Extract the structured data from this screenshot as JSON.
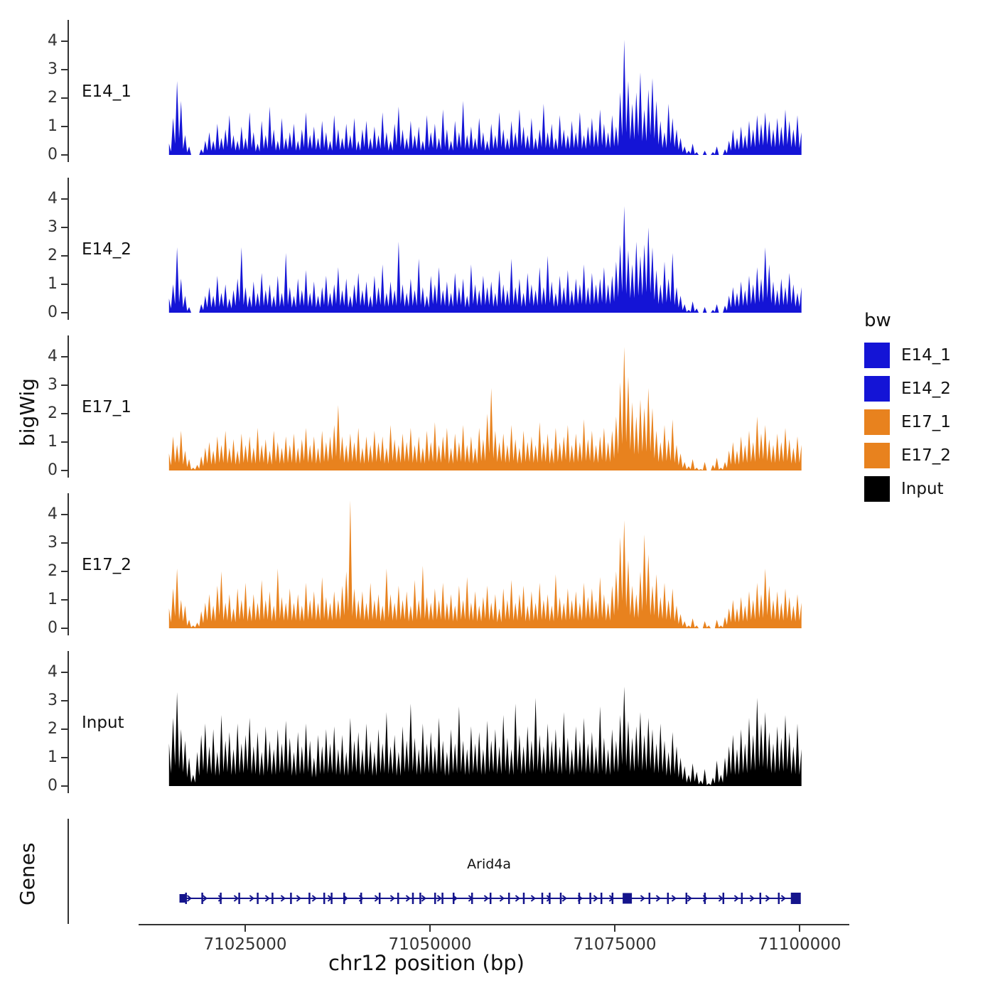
{
  "labels": {
    "y_title": "bigWig",
    "genes_title": "Genes"
  },
  "legend": {
    "title": "bw",
    "items": [
      {
        "label": "E14_1",
        "color": "#1414D6"
      },
      {
        "label": "E14_2",
        "color": "#1414D6"
      },
      {
        "label": "E17_1",
        "color": "#E8821E"
      },
      {
        "label": "E17_2",
        "color": "#E8821E"
      },
      {
        "label": "Input",
        "color": "#000000"
      }
    ]
  },
  "chart_data": {
    "type": "area",
    "title": "",
    "xlabel": "chr12 position (bp)",
    "ylabel": "bigWig",
    "x_start": 71014500,
    "x_step": 545,
    "xlim": [
      71010000,
      71105000
    ],
    "ylim": [
      0,
      4.5
    ],
    "y_ticks": [
      0,
      1,
      2,
      3,
      4
    ],
    "x_ticks": [
      71025000,
      71050000,
      71075000,
      71100000
    ],
    "tracks": [
      {
        "name": "E14_1",
        "color": "#1414D6",
        "values": [
          0.4,
          1.3,
          2.6,
          1.9,
          0.7,
          0.3,
          0,
          0,
          0.2,
          0.5,
          0.8,
          0.5,
          1.1,
          0.6,
          0.9,
          1.4,
          0.7,
          0.5,
          1.0,
          0.6,
          1.5,
          0.8,
          0.4,
          1.2,
          0.7,
          1.7,
          0.9,
          0.5,
          1.3,
          0.6,
          0.8,
          1.1,
          0.5,
          0.9,
          1.5,
          0.7,
          1.0,
          0.6,
          1.2,
          0.8,
          0.5,
          1.4,
          0.9,
          0.6,
          1.1,
          0.7,
          1.3,
          0.5,
          0.9,
          1.2,
          0.6,
          1.0,
          0.7,
          1.5,
          0.8,
          0.5,
          1.1,
          1.7,
          0.9,
          0.6,
          1.2,
          0.7,
          1.0,
          0.5,
          1.4,
          0.8,
          1.1,
          0.6,
          1.6,
          0.9,
          0.5,
          1.2,
          0.8,
          1.9,
          0.7,
          1.0,
          0.6,
          1.3,
          0.8,
          0.5,
          1.1,
          0.7,
          1.5,
          0.9,
          0.6,
          1.2,
          0.8,
          1.6,
          1.0,
          0.7,
          1.3,
          0.6,
          0.9,
          1.8,
          0.8,
          1.1,
          0.6,
          1.4,
          0.9,
          0.7,
          1.2,
          0.8,
          1.5,
          0.7,
          1.0,
          1.3,
          0.9,
          1.6,
          1.1,
          0.8,
          1.4,
          1.0,
          2.2,
          4.05,
          2.6,
          1.8,
          2.2,
          2.9,
          1.6,
          2.3,
          2.7,
          1.9,
          1.2,
          0.8,
          1.8,
          1.3,
          0.9,
          0.6,
          0.3,
          0.15,
          0.4,
          0.1,
          0,
          0.15,
          0,
          0.1,
          0.3,
          0,
          0.2,
          0.5,
          0.9,
          0.6,
          1.0,
          0.7,
          1.2,
          0.9,
          1.4,
          1.1,
          1.5,
          1.2,
          0.9,
          1.3,
          1.0,
          1.6,
          1.2,
          0.9,
          1.4,
          0.8
        ]
      },
      {
        "name": "E14_2",
        "color": "#1414D6",
        "values": [
          0.5,
          1.0,
          2.3,
          1.2,
          0.6,
          0.2,
          0,
          0,
          0.3,
          0.6,
          0.9,
          0.6,
          1.3,
          0.7,
          1.0,
          0.5,
          0.8,
          1.2,
          2.3,
          0.9,
          0.6,
          1.1,
          0.7,
          1.4,
          0.8,
          1.0,
          0.6,
          1.3,
          0.7,
          2.1,
          0.9,
          0.6,
          1.2,
          0.8,
          1.5,
          0.7,
          1.1,
          0.6,
          0.9,
          1.3,
          0.7,
          1.0,
          1.6,
          0.8,
          1.2,
          0.6,
          1.0,
          1.4,
          0.8,
          1.1,
          0.6,
          1.3,
          0.9,
          1.7,
          0.7,
          1.1,
          0.8,
          2.5,
          1.0,
          0.7,
          1.2,
          0.8,
          1.9,
          0.9,
          0.6,
          1.3,
          1.0,
          1.6,
          0.8,
          1.1,
          0.7,
          1.4,
          0.9,
          1.2,
          0.6,
          1.7,
          1.0,
          0.8,
          1.3,
          0.9,
          1.1,
          0.7,
          1.5,
          1.0,
          0.8,
          1.9,
          0.9,
          1.2,
          0.7,
          1.4,
          1.0,
          0.8,
          1.6,
          0.9,
          2.0,
          1.1,
          0.7,
          1.3,
          0.9,
          1.5,
          0.8,
          1.2,
          1.0,
          1.7,
          0.9,
          1.4,
          1.0,
          1.2,
          1.6,
          1.0,
          1.3,
          1.8,
          2.4,
          3.75,
          2.2,
          1.7,
          2.5,
          2.0,
          2.4,
          3.0,
          2.3,
          1.5,
          1.0,
          1.8,
          1.2,
          2.1,
          0.9,
          0.6,
          0.3,
          0.1,
          0.4,
          0.15,
          0,
          0.2,
          0,
          0.1,
          0.3,
          0,
          0.25,
          0.6,
          0.9,
          0.7,
          1.1,
          0.8,
          1.3,
          1.0,
          1.6,
          1.2,
          2.3,
          1.7,
          1.1,
          0.8,
          1.2,
          0.9,
          1.4,
          1.0,
          0.7,
          0.9
        ]
      },
      {
        "name": "E17_1",
        "color": "#E8821E",
        "values": [
          0.6,
          1.2,
          0.9,
          1.4,
          0.7,
          0.4,
          0.1,
          0.2,
          0.5,
          0.8,
          1.0,
          0.7,
          1.2,
          0.9,
          1.4,
          0.8,
          1.1,
          0.7,
          1.3,
          0.9,
          1.2,
          0.8,
          1.5,
          0.9,
          1.1,
          0.7,
          1.4,
          1.0,
          0.8,
          1.2,
          0.9,
          1.3,
          0.8,
          1.1,
          1.5,
          0.9,
          1.2,
          0.8,
          1.4,
          1.0,
          1.2,
          1.6,
          2.3,
          1.2,
          0.9,
          1.3,
          1.0,
          1.5,
          0.8,
          1.2,
          0.9,
          1.4,
          1.0,
          1.2,
          0.8,
          1.6,
          1.1,
          0.9,
          1.3,
          1.0,
          1.5,
          0.9,
          1.2,
          0.8,
          1.4,
          1.0,
          1.7,
          0.9,
          1.2,
          1.5,
          0.8,
          1.3,
          1.0,
          1.6,
          0.9,
          1.2,
          0.8,
          1.5,
          1.1,
          2.0,
          2.9,
          1.4,
          1.0,
          1.3,
          0.9,
          1.6,
          1.1,
          0.8,
          1.4,
          1.0,
          1.2,
          0.9,
          1.7,
          1.0,
          1.3,
          0.8,
          1.5,
          1.0,
          1.2,
          1.6,
          0.9,
          1.3,
          1.0,
          1.8,
          1.1,
          1.4,
          0.9,
          1.2,
          1.5,
          1.0,
          1.4,
          1.9,
          3.1,
          4.35,
          3.3,
          2.4,
          1.9,
          2.5,
          2.2,
          2.9,
          2.2,
          1.4,
          1.0,
          1.6,
          1.1,
          1.8,
          0.9,
          0.6,
          0.3,
          0.15,
          0.4,
          0.1,
          0.05,
          0.3,
          0,
          0.2,
          0.45,
          0.1,
          0.3,
          0.7,
          1.0,
          0.7,
          1.2,
          0.9,
          1.4,
          1.0,
          1.9,
          1.3,
          1.6,
          1.1,
          0.9,
          1.3,
          1.0,
          1.5,
          1.1,
          0.8,
          1.2,
          0.9
        ]
      },
      {
        "name": "E17_2",
        "color": "#E8821E",
        "values": [
          0.7,
          1.4,
          2.1,
          1.0,
          0.8,
          0.3,
          0.1,
          0.2,
          0.6,
          0.9,
          1.2,
          0.8,
          1.5,
          2.0,
          0.9,
          1.2,
          0.7,
          1.4,
          1.0,
          1.6,
          0.8,
          1.2,
          0.9,
          1.7,
          1.0,
          1.3,
          0.8,
          2.1,
          1.1,
          0.9,
          1.4,
          0.9,
          1.2,
          0.8,
          1.6,
          1.0,
          1.3,
          0.9,
          1.8,
          1.1,
          0.9,
          1.3,
          1.0,
          1.5,
          2.0,
          4.5,
          1.4,
          1.0,
          1.3,
          0.9,
          1.6,
          1.0,
          1.2,
          0.8,
          2.1,
          1.2,
          0.9,
          1.5,
          1.0,
          1.3,
          0.8,
          1.7,
          1.0,
          2.2,
          1.1,
          0.9,
          1.4,
          1.0,
          1.6,
          0.9,
          1.2,
          0.8,
          1.5,
          1.0,
          1.8,
          0.9,
          1.3,
          0.8,
          1.1,
          1.5,
          0.9,
          1.2,
          0.7,
          1.4,
          1.0,
          1.7,
          0.9,
          1.2,
          1.5,
          0.8,
          1.3,
          0.9,
          1.6,
          1.0,
          1.2,
          0.8,
          1.9,
          1.1,
          0.9,
          1.4,
          1.0,
          1.3,
          0.9,
          1.6,
          1.1,
          1.4,
          1.0,
          1.8,
          1.2,
          0.9,
          1.5,
          2.0,
          3.2,
          3.8,
          2.4,
          1.5,
          1.2,
          2.0,
          3.3,
          2.6,
          1.5,
          1.9,
          1.1,
          1.6,
          1.0,
          1.4,
          0.8,
          0.5,
          0.25,
          0.1,
          0.35,
          0.1,
          0,
          0.25,
          0.1,
          0,
          0.3,
          0.1,
          0.4,
          0.7,
          1.0,
          0.7,
          1.1,
          0.8,
          1.3,
          1.0,
          1.6,
          1.2,
          2.1,
          1.5,
          1.0,
          1.3,
          0.9,
          1.4,
          1.1,
          0.8,
          1.2,
          0.9
        ]
      },
      {
        "name": "Input",
        "color": "#000000",
        "values": [
          1.5,
          2.4,
          3.3,
          2.0,
          1.6,
          1.0,
          0.4,
          1.2,
          1.8,
          2.2,
          1.4,
          2.0,
          1.2,
          2.5,
          1.6,
          1.9,
          1.3,
          2.2,
          1.5,
          1.8,
          2.4,
          1.4,
          1.9,
          1.2,
          2.1,
          1.6,
          1.3,
          2.0,
          1.5,
          2.3,
          1.7,
          1.2,
          1.9,
          1.4,
          2.2,
          1.6,
          1.0,
          1.8,
          1.4,
          2.0,
          1.5,
          2.1,
          1.3,
          1.8,
          1.2,
          2.4,
          1.6,
          1.9,
          1.3,
          2.2,
          1.6,
          1.2,
          2.0,
          1.5,
          2.6,
          1.4,
          1.8,
          1.2,
          2.1,
          1.6,
          2.9,
          1.7,
          1.3,
          2.2,
          1.5,
          1.9,
          1.4,
          2.4,
          1.6,
          1.2,
          2.0,
          1.5,
          2.8,
          1.6,
          1.3,
          2.1,
          1.5,
          1.9,
          1.3,
          2.3,
          1.6,
          2.0,
          1.4,
          2.5,
          1.7,
          1.3,
          2.9,
          1.8,
          1.4,
          2.1,
          1.6,
          3.1,
          1.8,
          1.4,
          2.2,
          1.6,
          2.0,
          1.4,
          2.6,
          1.7,
          1.3,
          2.1,
          1.6,
          2.4,
          1.5,
          1.9,
          1.4,
          2.8,
          1.7,
          1.3,
          2.0,
          1.6,
          2.5,
          3.5,
          2.3,
          1.7,
          2.1,
          2.6,
          1.8,
          2.4,
          2.0,
          1.5,
          2.2,
          1.6,
          1.2,
          1.9,
          1.4,
          1.0,
          0.7,
          0.4,
          0.8,
          0.5,
          0.2,
          0.6,
          0.1,
          0.3,
          0.9,
          0.4,
          1.0,
          1.4,
          1.8,
          1.3,
          2.0,
          1.5,
          2.4,
          1.8,
          3.1,
          2.2,
          2.6,
          1.9,
          1.5,
          2.1,
          1.7,
          2.5,
          1.9,
          1.4,
          2.2,
          1.3
        ]
      }
    ],
    "gene": {
      "name": "Arid4a",
      "color": "#14148C",
      "start": 71016000,
      "end": 71099600,
      "exons": [
        71016800,
        71019000,
        71021500,
        71024000,
        71026500,
        71028500,
        71031000,
        71033500,
        71035500,
        71036500,
        71038200,
        71040500,
        71043000,
        71045500,
        71047500,
        71048500,
        71050500,
        71051500,
        71053000,
        71055500,
        71058000,
        71060500,
        71062500,
        71065000,
        71066000,
        71067500,
        71070000,
        71071500,
        71073000,
        71074500,
        71079500,
        71082000,
        71084500,
        71087000,
        71089500,
        71092000,
        71094500,
        71097000
      ],
      "boxes": [
        {
          "pos": 71016300,
          "w": 8,
          "h": 12
        },
        {
          "pos": 71076500,
          "w": 13,
          "h": 15
        },
        {
          "pos": 71099300,
          "w": 14,
          "h": 16
        }
      ]
    }
  }
}
